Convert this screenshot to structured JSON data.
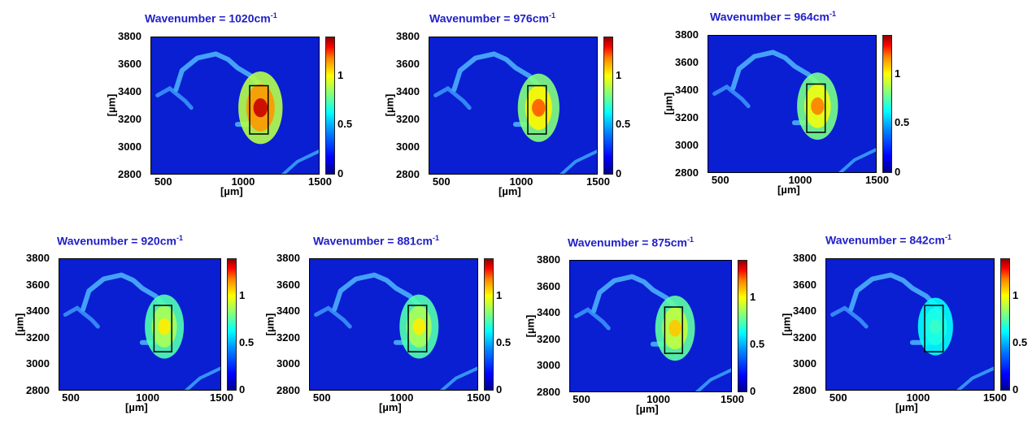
{
  "chart_data": [
    {
      "type": "heatmap",
      "title_text": "Wavenumber = 1020cm",
      "title_unit_exp": "-1",
      "xlabel": "[µm]",
      "ylabel": "[µm]",
      "xticks": [
        "500",
        "1000",
        "1500"
      ],
      "yticks": [
        "2800",
        "3000",
        "3200",
        "3400",
        "3600",
        "3800"
      ],
      "xlim": [
        400,
        1500
      ],
      "ylim": [
        2800,
        3800
      ],
      "colorbar": {
        "ticks": [
          "0",
          "0.5",
          "1"
        ],
        "range": [
          0,
          1.4
        ],
        "colormap": "jet"
      },
      "roi_box": {
        "x": [
          1040,
          1160
        ],
        "y": [
          3100,
          3450
        ]
      },
      "peak_intensity": 1.3
    },
    {
      "type": "heatmap",
      "title_text": "Wavenumber = 976cm",
      "title_unit_exp": "-1",
      "xlabel": "[µm]",
      "ylabel": "[µm]",
      "xticks": [
        "500",
        "1000",
        "1500"
      ],
      "yticks": [
        "2800",
        "3000",
        "3200",
        "3400",
        "3600",
        "3800"
      ],
      "xlim": [
        400,
        1500
      ],
      "ylim": [
        2800,
        3800
      ],
      "colorbar": {
        "ticks": [
          "0",
          "0.5",
          "1"
        ],
        "range": [
          0,
          1.4
        ],
        "colormap": "jet"
      },
      "roi_box": {
        "x": [
          1040,
          1160
        ],
        "y": [
          3100,
          3450
        ]
      },
      "peak_intensity": 1.1
    },
    {
      "type": "heatmap",
      "title_text": "Wavenumber = 964cm",
      "title_unit_exp": "-1",
      "xlabel": "[µm]",
      "ylabel": "[µm]",
      "xticks": [
        "500",
        "1000",
        "1500"
      ],
      "yticks": [
        "2800",
        "3000",
        "3200",
        "3400",
        "3600",
        "3800"
      ],
      "xlim": [
        400,
        1500
      ],
      "ylim": [
        2800,
        3800
      ],
      "colorbar": {
        "ticks": [
          "0",
          "0.5",
          "1"
        ],
        "range": [
          0,
          1.4
        ],
        "colormap": "jet"
      },
      "roi_box": {
        "x": [
          1040,
          1160
        ],
        "y": [
          3100,
          3450
        ]
      },
      "peak_intensity": 1.05
    },
    {
      "type": "heatmap",
      "title_text": "Wavenumber = 920cm",
      "title_unit_exp": "-1",
      "xlabel": "[µm]",
      "ylabel": "[µm]",
      "xticks": [
        "500",
        "1000",
        "1500"
      ],
      "yticks": [
        "2800",
        "3000",
        "3200",
        "3400",
        "3600",
        "3800"
      ],
      "xlim": [
        400,
        1500
      ],
      "ylim": [
        2800,
        3800
      ],
      "colorbar": {
        "ticks": [
          "0",
          "0.5",
          "1"
        ],
        "range": [
          0,
          1.4
        ],
        "colormap": "jet"
      },
      "roi_box": {
        "x": [
          1040,
          1160
        ],
        "y": [
          3100,
          3450
        ]
      },
      "peak_intensity": 0.9
    },
    {
      "type": "heatmap",
      "title_text": "Wavenumber = 881cm",
      "title_unit_exp": "-1",
      "xlabel": "[µm]",
      "ylabel": "[µm]",
      "xticks": [
        "500",
        "1000",
        "1500"
      ],
      "yticks": [
        "2800",
        "3000",
        "3200",
        "3400",
        "3600",
        "3800"
      ],
      "xlim": [
        400,
        1500
      ],
      "ylim": [
        2800,
        3800
      ],
      "colorbar": {
        "ticks": [
          "0",
          "0.5",
          "1"
        ],
        "range": [
          0,
          1.4
        ],
        "colormap": "jet"
      },
      "roi_box": {
        "x": [
          1040,
          1160
        ],
        "y": [
          3100,
          3450
        ]
      },
      "peak_intensity": 0.9
    },
    {
      "type": "heatmap",
      "title_text": "Wavenumber = 875cm",
      "title_unit_exp": "-1",
      "xlabel": "[µm]",
      "ylabel": "[µm]",
      "xticks": [
        "500",
        "1000",
        "1500"
      ],
      "yticks": [
        "2800",
        "3000",
        "3200",
        "3400",
        "3600",
        "3800"
      ],
      "xlim": [
        400,
        1500
      ],
      "ylim": [
        2800,
        3800
      ],
      "colorbar": {
        "ticks": [
          "0",
          "0.5",
          "1"
        ],
        "range": [
          0,
          1.4
        ],
        "colormap": "jet"
      },
      "roi_box": {
        "x": [
          1040,
          1160
        ],
        "y": [
          3100,
          3450
        ]
      },
      "peak_intensity": 0.95
    },
    {
      "type": "heatmap",
      "title_text": "Wavenumber = 842cm",
      "title_unit_exp": "-1",
      "xlabel": "[µm]",
      "ylabel": "[µm]",
      "xticks": [
        "500",
        "1000",
        "1500"
      ],
      "yticks": [
        "2800",
        "3000",
        "3200",
        "3400",
        "3600",
        "3800"
      ],
      "xlim": [
        400,
        1500
      ],
      "ylim": [
        2800,
        3800
      ],
      "colorbar": {
        "ticks": [
          "0",
          "0.5",
          "1"
        ],
        "range": [
          0,
          1.4
        ],
        "colormap": "jet"
      },
      "roi_box": {
        "x": [
          1040,
          1160
        ],
        "y": [
          3100,
          3450
        ]
      },
      "peak_intensity": 0.6
    }
  ],
  "colors": {
    "title": "#1f1fc8",
    "background_map": "#0a1ed2",
    "roi_box": "#000000"
  }
}
